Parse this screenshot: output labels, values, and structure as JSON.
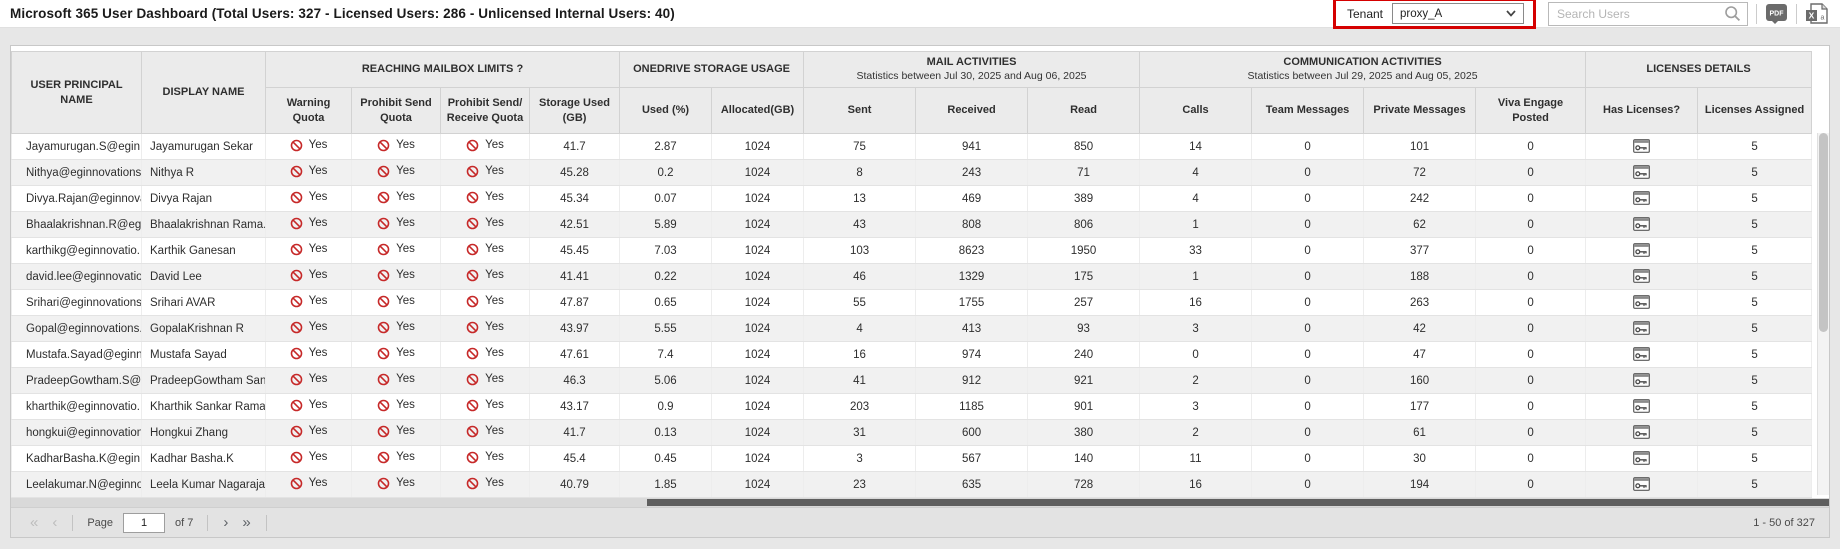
{
  "header": {
    "title": "Microsoft 365 User Dashboard (Total Users: 327 - Licensed Users: 286 - Unlicensed Internal Users: 40)",
    "tenant_label": "Tenant",
    "tenant_value": "proxy_A",
    "search_placeholder": "Search Users",
    "pdf_icon_text": "PDF",
    "excel_icon_text": "X"
  },
  "colors": {
    "tenant_highlight_red": "#d50000",
    "prohibit_red": "#c62828",
    "header_bg": "#ebebeb",
    "row_alt_bg": "#f1f1f1",
    "hscroll_thumb": "#5f5f5f"
  },
  "icons": {
    "search": "search-icon",
    "chevron": "chevron-down-icon",
    "pdf_export": "pdf-export-icon",
    "excel_export": "excel-export-icon",
    "prohibit": "prohibit-icon",
    "license": "license-icon"
  },
  "table": {
    "column_groups": [
      {
        "label": "REACHING MAILBOX LIMITS ?",
        "subtitle": "",
        "span": 4
      },
      {
        "label": "ONEDRIVE STORAGE USAGE",
        "subtitle": "",
        "span": 2
      },
      {
        "label": "MAIL ACTIVITIES",
        "subtitle": "Statistics between Jul 30, 2025 and Aug 06, 2025",
        "span": 3
      },
      {
        "label": "COMMUNICATION ACTIVITIES",
        "subtitle": "Statistics between Jul 29, 2025 and Aug 05, 2025",
        "span": 4
      },
      {
        "label": "LICENSES DETAILS",
        "subtitle": "",
        "span": 2
      }
    ],
    "columns": [
      "USER PRINCIPAL NAME",
      "DISPLAY NAME",
      "Warning Quota",
      "Prohibit Send Quota",
      "Prohibit Send/ Receive Quota",
      "Storage Used (GB)",
      "Used (%)",
      "Allocated(GB)",
      "Sent",
      "Received",
      "Read",
      "Calls",
      "Team Messages",
      "Private Messages",
      "Viva Engage Posted",
      "Has Licenses?",
      "Licenses Assigned"
    ],
    "quota_value": "Yes",
    "rows": [
      {
        "upn": "Jayamurugan.S@egin...",
        "display": "Jayamurugan Sekar",
        "storage": "41.7",
        "used_pct": "2.87",
        "allocated": "1024",
        "sent": "75",
        "received": "941",
        "read": "850",
        "calls": "14",
        "team": "0",
        "private": "101",
        "viva": "0",
        "licenses": "5"
      },
      {
        "upn": "Nithya@eginnovations...",
        "display": "Nithya R",
        "storage": "45.28",
        "used_pct": "0.2",
        "allocated": "1024",
        "sent": "8",
        "received": "243",
        "read": "71",
        "calls": "4",
        "team": "0",
        "private": "72",
        "viva": "0",
        "licenses": "5"
      },
      {
        "upn": "Divya.Rajan@eginnova...",
        "display": "Divya Rajan",
        "storage": "45.34",
        "used_pct": "0.07",
        "allocated": "1024",
        "sent": "13",
        "received": "469",
        "read": "389",
        "calls": "4",
        "team": "0",
        "private": "242",
        "viva": "0",
        "licenses": "5"
      },
      {
        "upn": "Bhaalakrishnan.R@egi...",
        "display": "Bhaalakrishnan Rama...",
        "storage": "42.51",
        "used_pct": "5.89",
        "allocated": "1024",
        "sent": "43",
        "received": "808",
        "read": "806",
        "calls": "1",
        "team": "0",
        "private": "62",
        "viva": "0",
        "licenses": "5"
      },
      {
        "upn": "karthikg@eginnovatio...",
        "display": "Karthik Ganesan",
        "storage": "45.45",
        "used_pct": "7.03",
        "allocated": "1024",
        "sent": "103",
        "received": "8623",
        "read": "1950",
        "calls": "33",
        "team": "0",
        "private": "377",
        "viva": "0",
        "licenses": "5"
      },
      {
        "upn": "david.lee@eginnovatio...",
        "display": "David Lee",
        "storage": "41.41",
        "used_pct": "0.22",
        "allocated": "1024",
        "sent": "46",
        "received": "1329",
        "read": "175",
        "calls": "1",
        "team": "0",
        "private": "188",
        "viva": "0",
        "licenses": "5"
      },
      {
        "upn": "Srihari@eginnovations...",
        "display": "Srihari AVAR",
        "storage": "47.87",
        "used_pct": "0.65",
        "allocated": "1024",
        "sent": "55",
        "received": "1755",
        "read": "257",
        "calls": "16",
        "team": "0",
        "private": "263",
        "viva": "0",
        "licenses": "5"
      },
      {
        "upn": "Gopal@eginnovations....",
        "display": "GopalaKrishnan R",
        "storage": "43.97",
        "used_pct": "5.55",
        "allocated": "1024",
        "sent": "4",
        "received": "413",
        "read": "93",
        "calls": "3",
        "team": "0",
        "private": "42",
        "viva": "0",
        "licenses": "5"
      },
      {
        "upn": "Mustafa.Sayad@eginn...",
        "display": "Mustafa Sayad",
        "storage": "47.61",
        "used_pct": "7.4",
        "allocated": "1024",
        "sent": "16",
        "received": "974",
        "read": "240",
        "calls": "0",
        "team": "0",
        "private": "47",
        "viva": "0",
        "licenses": "5"
      },
      {
        "upn": "PradeepGowtham.S@...",
        "display": "PradeepGowtham Sanj...",
        "storage": "46.3",
        "used_pct": "5.06",
        "allocated": "1024",
        "sent": "41",
        "received": "912",
        "read": "921",
        "calls": "2",
        "team": "0",
        "private": "160",
        "viva": "0",
        "licenses": "5"
      },
      {
        "upn": "kharthik@eginnovatio...",
        "display": "Kharthik Sankar Raman",
        "storage": "43.17",
        "used_pct": "0.9",
        "allocated": "1024",
        "sent": "203",
        "received": "1185",
        "read": "901",
        "calls": "3",
        "team": "0",
        "private": "177",
        "viva": "0",
        "licenses": "5"
      },
      {
        "upn": "hongkui@eginnovation...",
        "display": "Hongkui Zhang",
        "storage": "41.7",
        "used_pct": "0.13",
        "allocated": "1024",
        "sent": "31",
        "received": "600",
        "read": "380",
        "calls": "2",
        "team": "0",
        "private": "61",
        "viva": "0",
        "licenses": "5"
      },
      {
        "upn": "KadharBasha.K@egin...",
        "display": "Kadhar Basha.K",
        "storage": "45.4",
        "used_pct": "0.45",
        "allocated": "1024",
        "sent": "3",
        "received": "567",
        "read": "140",
        "calls": "11",
        "team": "0",
        "private": "30",
        "viva": "0",
        "licenses": "5"
      },
      {
        "upn": "Leelakumar.N@eginno...",
        "display": "Leela Kumar Nagarajan",
        "storage": "40.79",
        "used_pct": "1.85",
        "allocated": "1024",
        "sent": "23",
        "received": "635",
        "read": "728",
        "calls": "16",
        "team": "0",
        "private": "194",
        "viva": "0",
        "licenses": "5"
      }
    ]
  },
  "pagination": {
    "first": "«",
    "prev": "‹",
    "next": "›",
    "last": "»",
    "page_label": "Page",
    "page_value": "1",
    "of_label": "of 7",
    "range": "1 - 50 of 327"
  }
}
